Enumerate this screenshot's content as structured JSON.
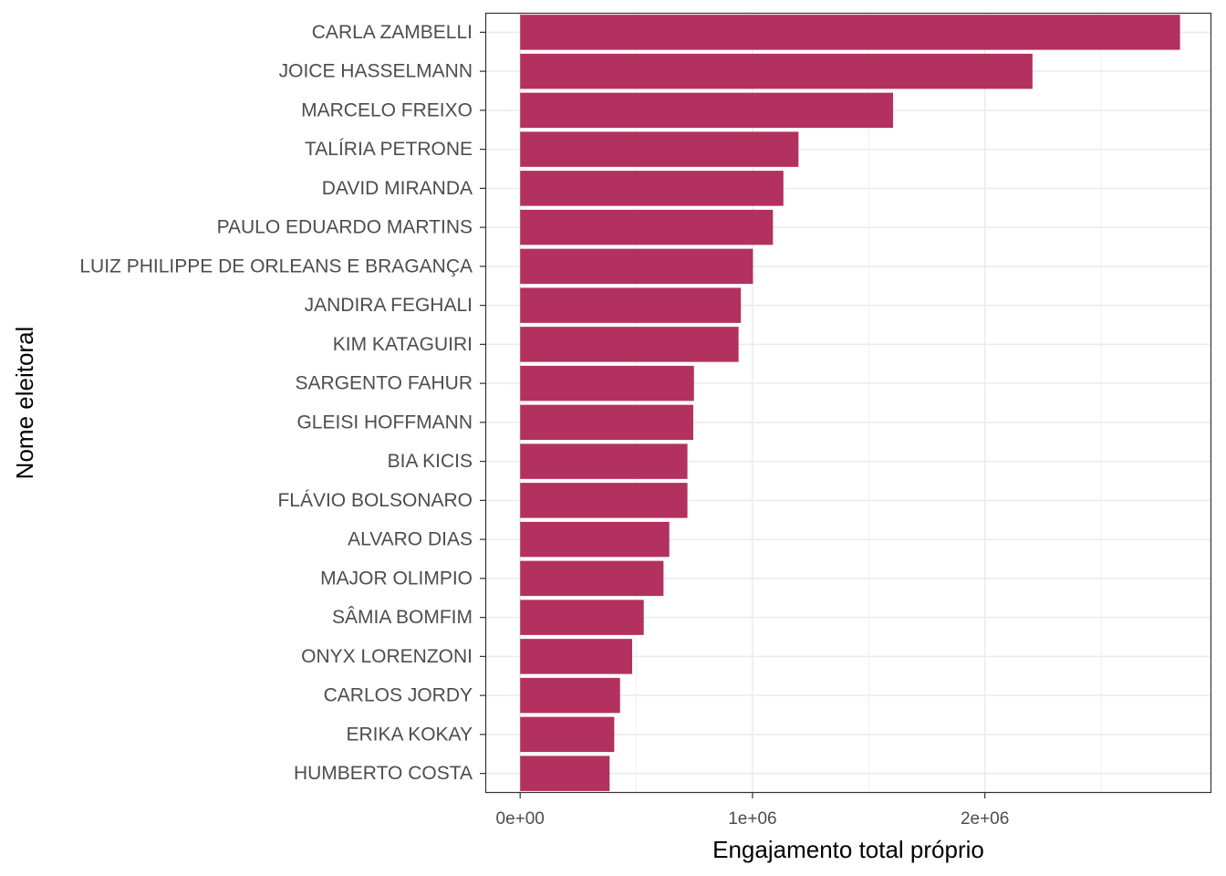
{
  "chart_data": {
    "type": "bar",
    "orientation": "horizontal",
    "xlabel": "Engajamento total próprio",
    "ylabel": "Nome eleitoral",
    "categories": [
      "CARLA ZAMBELLI",
      "JOICE HASSELMANN",
      "MARCELO FREIXO",
      "TALÍRIA PETRONE",
      "DAVID MIRANDA",
      "PAULO EDUARDO MARTINS",
      "LUIZ PHILIPPE DE ORLEANS E BRAGANÇA",
      "JANDIRA FEGHALI",
      "KIM KATAGUIRI",
      "SARGENTO FAHUR",
      "GLEISI HOFFMANN",
      "BIA KICIS",
      "FLÁVIO BOLSONARO",
      "ALVARO DIAS",
      "MAJOR OLIMPIO",
      "SÂMIA BOMFIM",
      "ONYX LORENZONI",
      "CARLOS JORDY",
      "ERIKA KOKAY",
      "HUMBERTO COSTA"
    ],
    "values": [
      2840000,
      2205000,
      1605000,
      1198000,
      1133000,
      1088000,
      1002000,
      950000,
      940000,
      748000,
      745000,
      720000,
      720000,
      642000,
      617000,
      532000,
      482000,
      430000,
      405000,
      385000
    ],
    "xlim": [
      -150000,
      2975000
    ],
    "xticks": [
      {
        "value": 0,
        "label": "0e+00"
      },
      {
        "value": 1000000,
        "label": "1e+06"
      },
      {
        "value": 2000000,
        "label": "2e+06"
      }
    ],
    "minor_xticks": [
      500000,
      1500000,
      2500000
    ],
    "grid": true,
    "legend": "none",
    "bar_color": "#b3315e",
    "theme": "bw"
  }
}
